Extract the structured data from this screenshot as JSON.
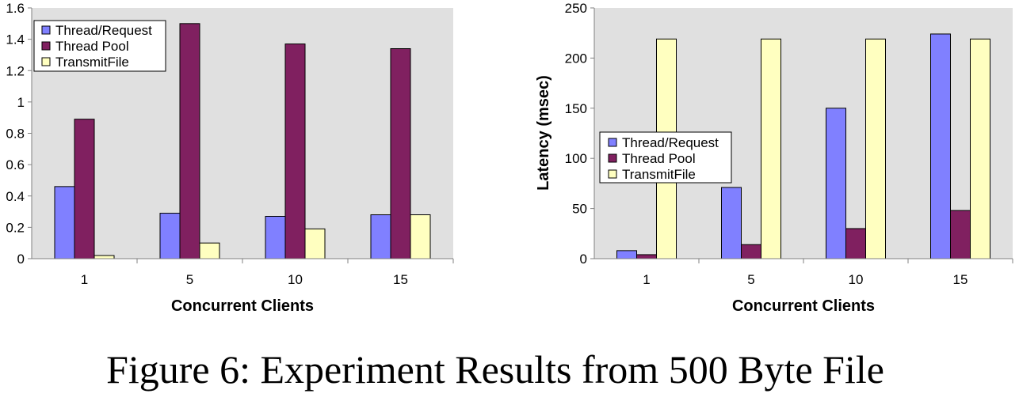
{
  "caption": "Figure 6: Experiment Results from 500 Byte File",
  "colors": {
    "plot_bg": "#e0e0e0",
    "axis": "#808080",
    "series": [
      "#8080ff",
      "#802060",
      "#ffffc0"
    ]
  },
  "chart_data": [
    {
      "type": "bar",
      "categories": [
        "1",
        "5",
        "10",
        "15"
      ],
      "xlabel": "Concurrent Clients",
      "ylabel": "",
      "ylim": [
        0,
        1.6
      ],
      "yticks": [
        "0",
        "0.2",
        "0.4",
        "0.6",
        "0.8",
        "1",
        "1.2",
        "1.4",
        "1.6"
      ],
      "legend_position": "top-left",
      "grid": false,
      "series": [
        {
          "name": "Thread/Request",
          "values": [
            0.46,
            0.29,
            0.27,
            0.28
          ]
        },
        {
          "name": "Thread Pool",
          "values": [
            0.89,
            1.5,
            1.37,
            1.34
          ]
        },
        {
          "name": "TransmitFile",
          "values": [
            0.02,
            0.1,
            0.19,
            0.28
          ]
        }
      ]
    },
    {
      "type": "bar",
      "categories": [
        "1",
        "5",
        "10",
        "15"
      ],
      "xlabel": "Concurrent Clients",
      "ylabel": "Latency (msec)",
      "ylim": [
        0,
        250
      ],
      "yticks": [
        "0",
        "50",
        "100",
        "150",
        "200",
        "250"
      ],
      "legend_position": "center-left",
      "grid": false,
      "series": [
        {
          "name": "Thread/Request",
          "values": [
            8,
            71,
            150,
            224
          ]
        },
        {
          "name": "Thread Pool",
          "values": [
            4,
            14,
            30,
            48
          ]
        },
        {
          "name": "TransmitFile",
          "values": [
            219,
            219,
            219,
            219
          ]
        }
      ]
    }
  ]
}
